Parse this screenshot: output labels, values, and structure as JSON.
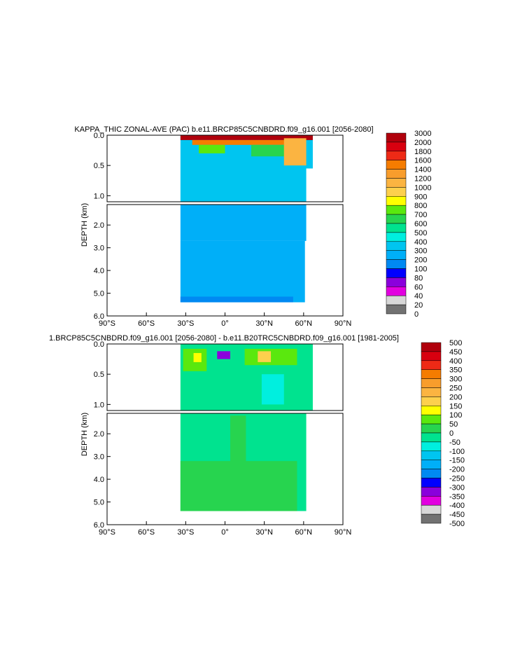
{
  "chart_data": [
    {
      "type": "heatmap",
      "title": "KAPPA_THIC ZONAL-AVE (PAC) b.e11.BRCP85C5CNBDRD.f09_g16.001 [2056-2080]",
      "ylabel": "DEPTH (km)",
      "x_ticks": [
        "90°S",
        "60°S",
        "30°S",
        "0°",
        "30°N",
        "60°N",
        "90°N"
      ],
      "x_tick_values": [
        -90,
        -60,
        -30,
        0,
        30,
        60,
        90
      ],
      "y_upper_ticks": [
        "0.0",
        "0.5",
        "1.0"
      ],
      "y_upper_values": [
        0.0,
        0.5,
        1.0
      ],
      "y_lower_ticks": [
        "2.0",
        "3.0",
        "4.0",
        "5.0",
        "6.0"
      ],
      "y_lower_values": [
        2.0,
        3.0,
        4.0,
        5.0,
        6.0
      ],
      "upper_ylim": [
        0,
        1.1
      ],
      "lower_ylim": [
        1.1,
        6.0
      ],
      "xlim": [
        -90,
        90
      ],
      "data_extent_lat": [
        -34,
        67
      ],
      "data_extent_depth_km": [
        0,
        5.4
      ],
      "colorbar": {
        "labels": [
          "3000",
          "2000",
          "1800",
          "1600",
          "1400",
          "1200",
          "1000",
          "900",
          "800",
          "700",
          "600",
          "500",
          "400",
          "300",
          "200",
          "100",
          "80",
          "60",
          "40",
          "20",
          "0"
        ],
        "colors": [
          "#b0000c",
          "#d8000f",
          "#ee2a16",
          "#f57c00",
          "#f89d2c",
          "#fbb441",
          "#fdd04d",
          "#ffff00",
          "#5ae80e",
          "#27d44f",
          "#00e38f",
          "#00efdf",
          "#00c5f0",
          "#00aff8",
          "#0089f2",
          "#0000ff",
          "#8a00dc",
          "#e200e0",
          "#d8d8d8",
          "#727272"
        ]
      },
      "regions": [
        {
          "lat0": -34,
          "lat1": 67,
          "z0": 0.0,
          "z1": 0.55,
          "value": 400
        },
        {
          "lat0": -34,
          "lat1": 62,
          "z0": 0.55,
          "z1": 1.1,
          "value": 400
        },
        {
          "lat0": -34,
          "lat1": 62,
          "z0": 1.1,
          "z1": 2.7,
          "value": 300
        },
        {
          "lat0": -34,
          "lat1": 61,
          "z0": 2.7,
          "z1": 5.4,
          "value": 250
        },
        {
          "lat0": -34,
          "lat1": 52,
          "z0": 5.15,
          "z1": 5.4,
          "value": 180
        },
        {
          "lat0": -34,
          "lat1": 67,
          "z0": 0.0,
          "z1": 0.08,
          "value": 2500
        },
        {
          "lat0": -25,
          "lat1": 55,
          "z0": 0.08,
          "z1": 0.16,
          "value": 1500
        },
        {
          "lat0": -20,
          "lat1": 0,
          "z0": 0.16,
          "z1": 0.3,
          "value": 800
        },
        {
          "lat0": 20,
          "lat1": 60,
          "z0": 0.16,
          "z1": 0.35,
          "value": 700
        },
        {
          "lat0": 45,
          "lat1": 62,
          "z0": 0.05,
          "z1": 0.5,
          "value": 1100
        }
      ]
    },
    {
      "type": "heatmap",
      "title": "1.BRCP85C5CNBDRD.f09_g16.001 [2056-2080] - b.e11.B20TRC5CNBDRD.f09_g16.001 [1981-2005]",
      "ylabel": "DEPTH (km)",
      "x_ticks": [
        "90°S",
        "60°S",
        "30°S",
        "0°",
        "30°N",
        "60°N",
        "90°N"
      ],
      "x_tick_values": [
        -90,
        -60,
        -30,
        0,
        30,
        60,
        90
      ],
      "y_upper_ticks": [
        "0.0",
        "0.5",
        "1.0"
      ],
      "y_upper_values": [
        0.0,
        0.5,
        1.0
      ],
      "y_lower_ticks": [
        "2.0",
        "3.0",
        "4.0",
        "5.0",
        "6.0"
      ],
      "y_lower_values": [
        2.0,
        3.0,
        4.0,
        5.0,
        6.0
      ],
      "upper_ylim": [
        0,
        1.1
      ],
      "lower_ylim": [
        1.1,
        6.0
      ],
      "xlim": [
        -90,
        90
      ],
      "data_extent_lat": [
        -34,
        67
      ],
      "data_extent_depth_km": [
        0,
        5.4
      ],
      "colorbar": {
        "labels": [
          "500",
          "450",
          "400",
          "350",
          "300",
          "250",
          "200",
          "150",
          "100",
          "50",
          "0",
          "-50",
          "-100",
          "-150",
          "-200",
          "-250",
          "-300",
          "-350",
          "-400",
          "-450",
          "-500"
        ],
        "colors": [
          "#b0000c",
          "#d8000f",
          "#ee2a16",
          "#f57c00",
          "#f89d2c",
          "#fbb441",
          "#fdd04d",
          "#ffff00",
          "#5ae80e",
          "#27d44f",
          "#00e38f",
          "#00efdf",
          "#00c5f0",
          "#00aff8",
          "#0089f2",
          "#0000ff",
          "#8a00dc",
          "#e200e0",
          "#d8d8d8",
          "#727272"
        ]
      },
      "regions": [
        {
          "lat0": -34,
          "lat1": 67,
          "z0": 0.0,
          "z1": 1.1,
          "value": -20
        },
        {
          "lat0": -34,
          "lat1": 62,
          "z0": 1.1,
          "z1": 5.4,
          "value": -20
        },
        {
          "lat0": -32,
          "lat1": -14,
          "z0": 0.08,
          "z1": 0.45,
          "value": 60
        },
        {
          "lat0": -24,
          "lat1": -18,
          "z0": 0.15,
          "z1": 0.3,
          "value": 120
        },
        {
          "lat0": 15,
          "lat1": 55,
          "z0": 0.08,
          "z1": 0.35,
          "value": 60
        },
        {
          "lat0": 25,
          "lat1": 35,
          "z0": 0.12,
          "z1": 0.3,
          "value": 170
        },
        {
          "lat0": -6,
          "lat1": 4,
          "z0": 0.12,
          "z1": 0.25,
          "value": -320
        },
        {
          "lat0": -34,
          "lat1": 55,
          "z0": 3.2,
          "z1": 5.4,
          "value": 30
        },
        {
          "lat0": 4,
          "lat1": 16,
          "z0": 1.2,
          "z1": 5.4,
          "value": 30
        },
        {
          "lat0": 28,
          "lat1": 45,
          "z0": 0.5,
          "z1": 1.0,
          "value": -70
        }
      ]
    }
  ]
}
